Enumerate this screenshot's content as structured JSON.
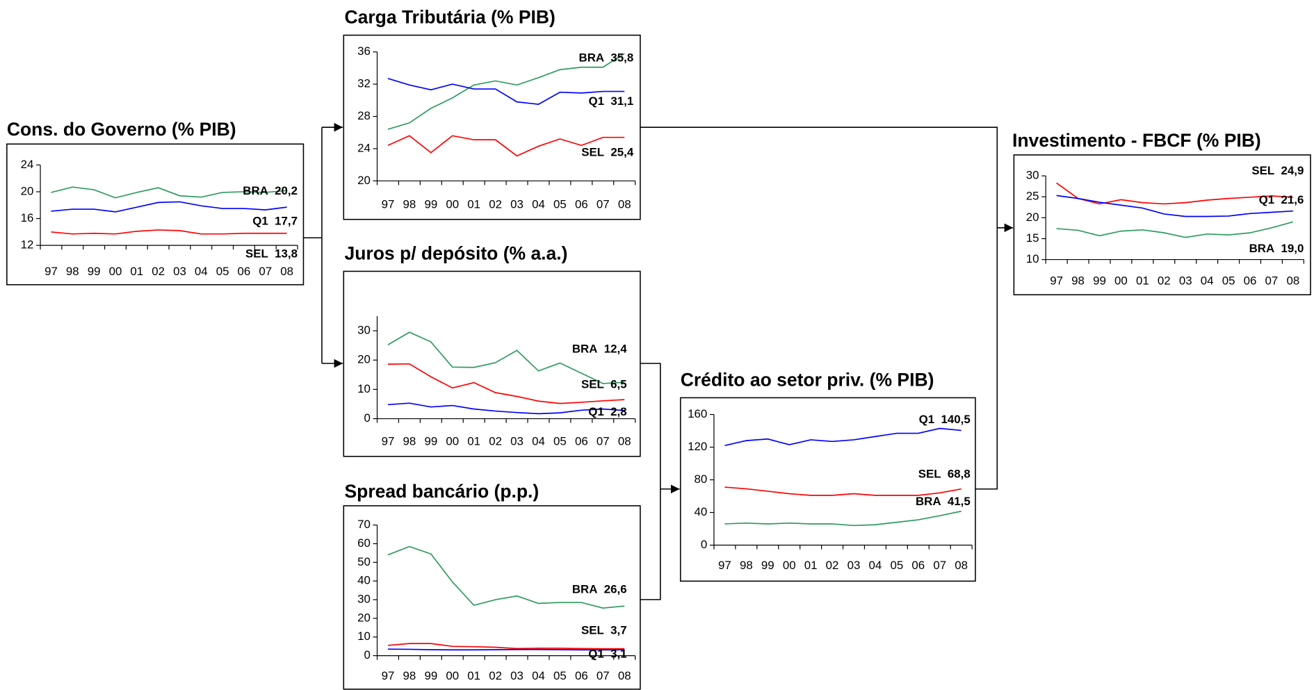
{
  "chart_data": [
    {
      "type": "line",
      "title": "Cons. do  Governo (% PIB)",
      "categories": [
        "97",
        "98",
        "99",
        "00",
        "01",
        "02",
        "03",
        "04",
        "05",
        "06",
        "07",
        "08"
      ],
      "ylim": [
        12,
        24
      ],
      "yticks": [
        12,
        16,
        20,
        24
      ],
      "series": [
        {
          "name": "BRA",
          "color": "#2e9a5e",
          "values": [
            19.9,
            20.7,
            20.3,
            19.1,
            19.9,
            20.6,
            19.4,
            19.2,
            19.9,
            20.0,
            19.9,
            20.2
          ],
          "value_labels": [
            null,
            null,
            null,
            null,
            null,
            null,
            null,
            null,
            null,
            null,
            null,
            "20,2"
          ]
        },
        {
          "name": "Q1",
          "color": "#0000ff",
          "values": [
            17.1,
            17.4,
            17.4,
            17.0,
            17.7,
            18.4,
            18.5,
            17.9,
            17.5,
            17.5,
            17.3,
            17.7
          ],
          "value_labels": [
            null,
            null,
            null,
            null,
            null,
            null,
            null,
            null,
            null,
            null,
            null,
            "17,7"
          ]
        },
        {
          "name": "SEL",
          "color": "#ff0000",
          "values": [
            14.0,
            13.7,
            13.8,
            13.7,
            14.1,
            14.3,
            14.2,
            13.7,
            13.7,
            13.8,
            13.8,
            13.8
          ],
          "value_labels": [
            null,
            null,
            null,
            null,
            null,
            null,
            null,
            null,
            null,
            null,
            null,
            "13,8"
          ]
        }
      ]
    },
    {
      "type": "line",
      "title": "Carga Tributária (% PIB)",
      "categories": [
        "97",
        "98",
        "99",
        "00",
        "01",
        "02",
        "03",
        "04",
        "05",
        "06",
        "07",
        "08"
      ],
      "ylim": [
        20,
        36
      ],
      "yticks": [
        20,
        24,
        28,
        32,
        36
      ],
      "series": [
        {
          "name": "BRA",
          "color": "#2e9a5e",
          "values": [
            26.4,
            27.2,
            29.0,
            30.3,
            31.9,
            32.4,
            31.9,
            32.8,
            33.8,
            34.1,
            34.1,
            35.8
          ],
          "value_labels": [
            null,
            null,
            null,
            null,
            null,
            null,
            null,
            null,
            null,
            null,
            null,
            "35,8"
          ]
        },
        {
          "name": "Q1",
          "color": "#0000ff",
          "values": [
            32.7,
            31.9,
            31.3,
            32.0,
            31.4,
            31.4,
            29.8,
            29.5,
            31.0,
            30.9,
            31.1,
            31.1
          ],
          "value_labels": [
            null,
            null,
            null,
            null,
            null,
            null,
            null,
            null,
            null,
            null,
            null,
            "31,1"
          ]
        },
        {
          "name": "SEL",
          "color": "#ff0000",
          "values": [
            24.4,
            25.6,
            23.5,
            25.6,
            25.1,
            25.1,
            23.1,
            24.3,
            25.2,
            24.4,
            25.4,
            25.4
          ],
          "value_labels": [
            null,
            null,
            null,
            null,
            null,
            null,
            null,
            null,
            null,
            null,
            null,
            "25,4"
          ]
        }
      ]
    },
    {
      "type": "line",
      "title": "Juros p/ depósito (% a.a.)",
      "categories": [
        "97",
        "98",
        "99",
        "00",
        "01",
        "02",
        "03",
        "04",
        "05",
        "06",
        "07",
        "08"
      ],
      "ylim": [
        0,
        35
      ],
      "yticks": [
        0,
        10,
        20,
        30
      ],
      "series": [
        {
          "name": "BRA",
          "color": "#2e9a5e",
          "values": [
            25.2,
            29.5,
            26.2,
            17.6,
            17.5,
            19.1,
            23.3,
            16.3,
            19.0,
            15.5,
            12.0,
            12.4
          ],
          "value_labels": [
            null,
            null,
            null,
            null,
            null,
            null,
            null,
            null,
            null,
            null,
            null,
            "12,4"
          ]
        },
        {
          "name": "SEL",
          "color": "#ff0000",
          "values": [
            18.6,
            18.7,
            14.3,
            10.5,
            12.3,
            8.9,
            7.6,
            6.0,
            5.2,
            5.6,
            6.1,
            6.5
          ],
          "value_labels": [
            null,
            null,
            null,
            null,
            null,
            null,
            null,
            null,
            null,
            null,
            null,
            "6,5"
          ]
        },
        {
          "name": "Q1",
          "color": "#0000ff",
          "values": [
            4.8,
            5.3,
            4.0,
            4.5,
            3.3,
            2.6,
            2.1,
            1.7,
            2.0,
            2.9,
            3.3,
            2.8
          ],
          "value_labels": [
            null,
            null,
            null,
            null,
            null,
            null,
            null,
            null,
            null,
            null,
            null,
            "2,8"
          ]
        }
      ]
    },
    {
      "type": "line",
      "title": "Spread bancário (p.p.)",
      "categories": [
        "97",
        "98",
        "99",
        "00",
        "01",
        "02",
        "03",
        "04",
        "05",
        "06",
        "07",
        "08"
      ],
      "ylim": [
        0,
        70
      ],
      "yticks": [
        0,
        10,
        20,
        30,
        40,
        50,
        60,
        70
      ],
      "series": [
        {
          "name": "BRA",
          "color": "#2e9a5e",
          "values": [
            54.0,
            58.5,
            54.5,
            39.5,
            27.0,
            30.0,
            32.0,
            28.0,
            28.5,
            28.5,
            25.5,
            26.6
          ],
          "value_labels": [
            null,
            null,
            null,
            null,
            null,
            null,
            null,
            null,
            null,
            null,
            null,
            "26,6"
          ]
        },
        {
          "name": "SEL",
          "color": "#ff0000",
          "values": [
            5.5,
            6.5,
            6.5,
            5.0,
            4.8,
            4.5,
            3.8,
            4.0,
            4.0,
            3.8,
            3.7,
            3.7
          ],
          "value_labels": [
            null,
            null,
            null,
            null,
            null,
            null,
            null,
            null,
            null,
            null,
            null,
            "3,7"
          ]
        },
        {
          "name": "Q1",
          "color": "#0000ff",
          "values": [
            3.5,
            3.4,
            3.2,
            3.1,
            3.1,
            3.2,
            3.3,
            3.3,
            3.2,
            3.1,
            3.1,
            3.1
          ],
          "value_labels": [
            null,
            null,
            null,
            null,
            null,
            null,
            null,
            null,
            null,
            null,
            null,
            "3,1"
          ]
        }
      ]
    },
    {
      "type": "line",
      "title": "Crédito ao setor priv. (% PIB)",
      "categories": [
        "97",
        "98",
        "99",
        "00",
        "01",
        "02",
        "03",
        "04",
        "05",
        "06",
        "07",
        "08"
      ],
      "ylim": [
        0,
        160
      ],
      "yticks": [
        0,
        40,
        80,
        120,
        160
      ],
      "series": [
        {
          "name": "Q1",
          "color": "#0000ff",
          "values": [
            122,
            128,
            130,
            123,
            129,
            127,
            129,
            133,
            137,
            137,
            143,
            140.5
          ],
          "value_labels": [
            null,
            null,
            null,
            null,
            null,
            null,
            null,
            null,
            null,
            null,
            null,
            "140,5"
          ]
        },
        {
          "name": "SEL",
          "color": "#ff0000",
          "values": [
            71,
            69,
            66,
            63,
            61,
            61,
            63,
            61,
            61,
            61,
            64,
            68.8
          ],
          "value_labels": [
            null,
            null,
            null,
            null,
            null,
            null,
            null,
            null,
            null,
            null,
            null,
            "68,8"
          ]
        },
        {
          "name": "BRA",
          "color": "#2e9a5e",
          "values": [
            26,
            27,
            26,
            27,
            26,
            26,
            24,
            25,
            28,
            31,
            36,
            41.5
          ],
          "value_labels": [
            null,
            null,
            null,
            null,
            null,
            null,
            null,
            null,
            null,
            null,
            null,
            "41,5"
          ]
        }
      ]
    },
    {
      "type": "line",
      "title": "Investimento - FBCF (% PIB)",
      "categories": [
        "97",
        "98",
        "99",
        "00",
        "01",
        "02",
        "03",
        "04",
        "05",
        "06",
        "07",
        "08"
      ],
      "ylim": [
        10,
        30
      ],
      "yticks": [
        10,
        15,
        20,
        25,
        30
      ],
      "series": [
        {
          "name": "SEL",
          "color": "#ff0000",
          "values": [
            28.3,
            24.6,
            23.3,
            24.3,
            23.6,
            23.3,
            23.6,
            24.2,
            24.6,
            24.9,
            25.2,
            24.9
          ],
          "value_labels": [
            null,
            null,
            null,
            null,
            null,
            null,
            null,
            null,
            null,
            null,
            null,
            "24,9"
          ]
        },
        {
          "name": "Q1",
          "color": "#0000ff",
          "values": [
            25.3,
            24.6,
            23.7,
            23.0,
            22.3,
            20.9,
            20.3,
            20.3,
            20.4,
            21.0,
            21.3,
            21.6
          ],
          "value_labels": [
            null,
            null,
            null,
            null,
            null,
            null,
            null,
            null,
            null,
            null,
            null,
            "21,6"
          ]
        },
        {
          "name": "BRA",
          "color": "#2e9a5e",
          "values": [
            17.4,
            17.0,
            15.7,
            16.8,
            17.1,
            16.4,
            15.3,
            16.1,
            15.9,
            16.4,
            17.6,
            19.0
          ],
          "value_labels": [
            null,
            null,
            null,
            null,
            null,
            null,
            null,
            null,
            null,
            null,
            null,
            "19,0"
          ]
        }
      ]
    }
  ]
}
